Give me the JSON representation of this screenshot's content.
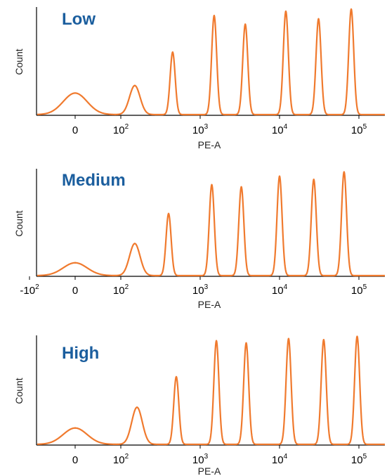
{
  "chart_data": [
    {
      "type": "area",
      "title": "Low",
      "xlabel": "PE-A",
      "ylabel": "Count",
      "x_scale": "biexponential",
      "x_ticks": [
        {
          "value": 0,
          "label": "0"
        },
        {
          "value": 100,
          "label": "10",
          "sup": "2"
        },
        {
          "value": 1000,
          "label": "10",
          "sup": "3"
        },
        {
          "value": 10000,
          "label": "10",
          "sup": "4"
        },
        {
          "value": 100000,
          "label": "10",
          "sup": "5"
        }
      ],
      "peaks": [
        {
          "x": 0,
          "relative_count": 0.2
        },
        {
          "x": 150,
          "relative_count": 0.27
        },
        {
          "x": 450,
          "relative_count": 0.58
        },
        {
          "x": 1500,
          "relative_count": 0.92
        },
        {
          "x": 3700,
          "relative_count": 0.84
        },
        {
          "x": 12000,
          "relative_count": 0.96
        },
        {
          "x": 31000,
          "relative_count": 0.89
        },
        {
          "x": 80000,
          "relative_count": 0.98
        }
      ],
      "series_color": "#f07a2e",
      "title_color": "#1b5e9e"
    },
    {
      "type": "area",
      "title": "Medium",
      "xlabel": "PE-A",
      "ylabel": "Count",
      "x_scale": "biexponential",
      "x_ticks": [
        {
          "value": -100,
          "label": "-10",
          "sup": "2"
        },
        {
          "value": 0,
          "label": "0"
        },
        {
          "value": 100,
          "label": "10",
          "sup": "2"
        },
        {
          "value": 1000,
          "label": "10",
          "sup": "3"
        },
        {
          "value": 10000,
          "label": "10",
          "sup": "4"
        },
        {
          "value": 100000,
          "label": "10",
          "sup": "5"
        }
      ],
      "peaks": [
        {
          "x": 0,
          "relative_count": 0.12
        },
        {
          "x": 150,
          "relative_count": 0.3
        },
        {
          "x": 400,
          "relative_count": 0.58
        },
        {
          "x": 1400,
          "relative_count": 0.85
        },
        {
          "x": 3300,
          "relative_count": 0.83
        },
        {
          "x": 10000,
          "relative_count": 0.93
        },
        {
          "x": 27000,
          "relative_count": 0.9
        },
        {
          "x": 65000,
          "relative_count": 0.97
        }
      ],
      "series_color": "#f07a2e",
      "title_color": "#1b5e9e"
    },
    {
      "type": "area",
      "title": "High",
      "xlabel": "PE-A",
      "ylabel": "Count",
      "x_scale": "biexponential",
      "x_ticks": [
        {
          "value": 0,
          "label": "0"
        },
        {
          "value": 100,
          "label": "10",
          "sup": "2"
        },
        {
          "value": 1000,
          "label": "10",
          "sup": "3"
        },
        {
          "value": 10000,
          "label": "10",
          "sup": "4"
        },
        {
          "value": 100000,
          "label": "10",
          "sup": "5"
        }
      ],
      "peaks": [
        {
          "x": 0,
          "relative_count": 0.15
        },
        {
          "x": 160,
          "relative_count": 0.34
        },
        {
          "x": 500,
          "relative_count": 0.62
        },
        {
          "x": 1600,
          "relative_count": 0.95
        },
        {
          "x": 3800,
          "relative_count": 0.93
        },
        {
          "x": 13000,
          "relative_count": 0.97
        },
        {
          "x": 36000,
          "relative_count": 0.96
        },
        {
          "x": 95000,
          "relative_count": 0.99
        }
      ],
      "series_color": "#f07a2e",
      "title_color": "#1b5e9e"
    }
  ]
}
